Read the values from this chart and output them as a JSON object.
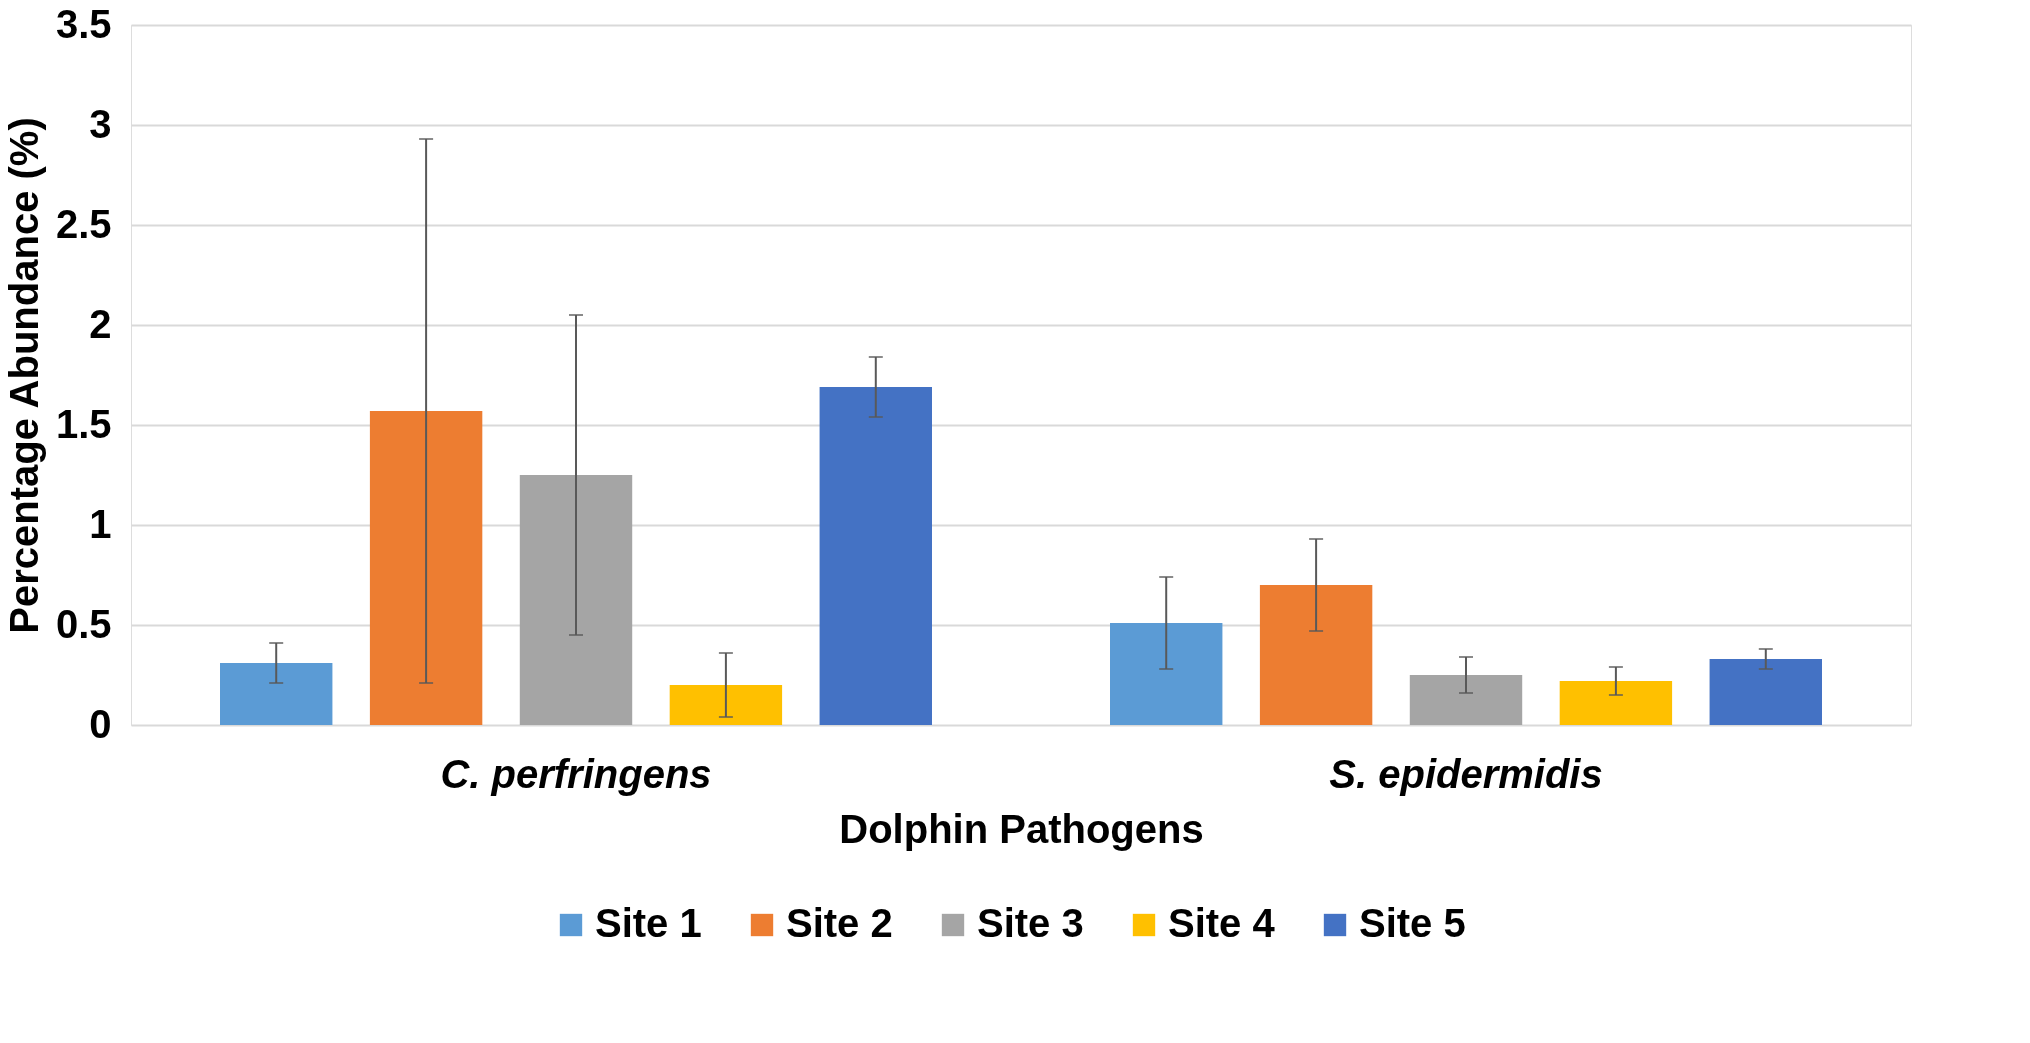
{
  "chart_data": {
    "type": "bar",
    "xlabel": "Dolphin Pathogens",
    "ylabel": "Percentage Abundance (%)",
    "categories": [
      "C. perfringens",
      "S. epidermidis"
    ],
    "series": [
      {
        "name": "Site 1",
        "color": "#5b9bd5",
        "values": [
          0.31,
          0.51
        ],
        "errors": [
          0.1,
          0.23
        ]
      },
      {
        "name": "Site 2",
        "color": "#ed7d31",
        "values": [
          1.57,
          0.7
        ],
        "errors": [
          1.36,
          0.23
        ]
      },
      {
        "name": "Site 3",
        "color": "#a5a5a5",
        "values": [
          1.25,
          0.25
        ],
        "errors": [
          0.8,
          0.09
        ]
      },
      {
        "name": "Site 4",
        "color": "#ffc000",
        "values": [
          0.2,
          0.22
        ],
        "errors": [
          0.16,
          0.07
        ]
      },
      {
        "name": "Site 5",
        "color": "#4472c4",
        "values": [
          1.69,
          0.33
        ],
        "errors": [
          0.15,
          0.05
        ]
      }
    ],
    "ylim": [
      0,
      3.5
    ],
    "yticks": [
      0,
      0.5,
      1,
      1.5,
      2,
      2.5,
      3,
      3.5
    ],
    "grid": "y",
    "legend": "bottom"
  }
}
